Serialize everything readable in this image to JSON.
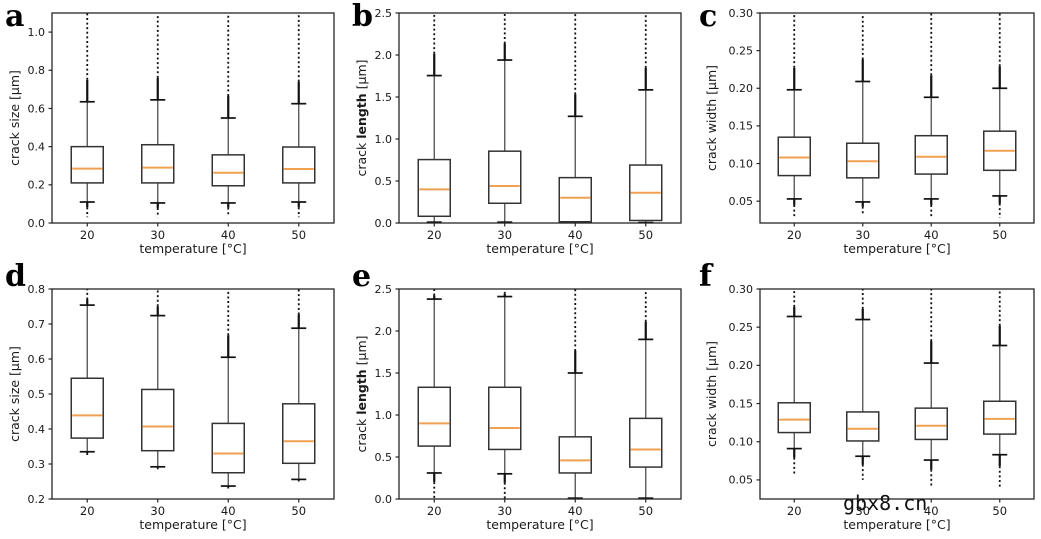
{
  "watermark": {
    "text": "gbx8.cn"
  },
  "colors": {
    "median": "#f0a050",
    "box_edge": "#333333",
    "whisker": "#4f4f4f",
    "cap": "#111111",
    "flier": "#111111",
    "spine": "#262626",
    "text": "#1a1a1a"
  },
  "chart_data": [
    {
      "panel": "a",
      "type": "box",
      "xlabel": "temperature [°C]",
      "ylabel": "crack size [μm]",
      "ylabel_segments": [
        {
          "text": "crack size [μm]",
          "bold": false
        }
      ],
      "categories": [
        "20",
        "30",
        "40",
        "50"
      ],
      "ylim": [
        0.0,
        1.1
      ],
      "yticks": [
        0.0,
        0.2,
        0.4,
        0.6,
        0.8,
        1.0
      ],
      "ytick_labels": [
        "0.0",
        "0.2",
        "0.4",
        "0.6",
        "0.8",
        "1.0"
      ],
      "boxes": [
        {
          "category": "20",
          "whislo": 0.11,
          "q1": 0.21,
          "med": 0.285,
          "q3": 0.4,
          "whishi": 0.635,
          "flier_low_to": 0.03,
          "flier_high_to": 1.1
        },
        {
          "category": "30",
          "whislo": 0.105,
          "q1": 0.21,
          "med": 0.29,
          "q3": 0.41,
          "whishi": 0.645,
          "flier_low_to": 0.03,
          "flier_high_to": 1.1
        },
        {
          "category": "40",
          "whislo": 0.105,
          "q1": 0.195,
          "med": 0.263,
          "q3": 0.357,
          "whishi": 0.55,
          "flier_low_to": 0.035,
          "flier_high_to": 1.1
        },
        {
          "category": "50",
          "whislo": 0.11,
          "q1": 0.21,
          "med": 0.283,
          "q3": 0.398,
          "whishi": 0.625,
          "flier_low_to": 0.03,
          "flier_high_to": 1.1
        }
      ]
    },
    {
      "panel": "b",
      "type": "box",
      "xlabel": "temperature [°C]",
      "ylabel": "crack length [μm]",
      "ylabel_segments": [
        {
          "text": "crack ",
          "bold": false
        },
        {
          "text": "length",
          "bold": true
        },
        {
          "text": " [μm]",
          "bold": false
        }
      ],
      "categories": [
        "20",
        "30",
        "40",
        "50"
      ],
      "ylim": [
        0.0,
        2.5
      ],
      "yticks": [
        0.0,
        0.5,
        1.0,
        1.5,
        2.0,
        2.5
      ],
      "ytick_labels": [
        "0.0",
        "0.5",
        "1.0",
        "1.5",
        "2.0",
        "2.5"
      ],
      "boxes": [
        {
          "category": "20",
          "whislo": 0.01,
          "q1": 0.08,
          "med": 0.4,
          "q3": 0.755,
          "whishi": 1.755,
          "flier_low_to": null,
          "flier_high_to": 2.5
        },
        {
          "category": "30",
          "whislo": 0.01,
          "q1": 0.235,
          "med": 0.44,
          "q3": 0.855,
          "whishi": 1.94,
          "flier_low_to": null,
          "flier_high_to": 2.5
        },
        {
          "category": "40",
          "whislo": 0.005,
          "q1": 0.015,
          "med": 0.3,
          "q3": 0.54,
          "whishi": 1.27,
          "flier_low_to": null,
          "flier_high_to": 2.5
        },
        {
          "category": "50",
          "whislo": 0.005,
          "q1": 0.03,
          "med": 0.36,
          "q3": 0.69,
          "whishi": 1.585,
          "flier_low_to": null,
          "flier_high_to": 2.5
        }
      ]
    },
    {
      "panel": "c",
      "type": "box",
      "xlabel": "temperature [°C]",
      "ylabel": "crack width [μm]",
      "ylabel_segments": [
        {
          "text": "crack width [μm]",
          "bold": false
        }
      ],
      "categories": [
        "20",
        "30",
        "40",
        "50"
      ],
      "ylim": [
        0.021,
        0.3
      ],
      "yticks": [
        0.05,
        0.1,
        0.15,
        0.2,
        0.25,
        0.3
      ],
      "ytick_labels": [
        "0.05",
        "0.10",
        "0.15",
        "0.20",
        "0.25",
        "0.30"
      ],
      "boxes": [
        {
          "category": "20",
          "whislo": 0.053,
          "q1": 0.084,
          "med": 0.108,
          "q3": 0.135,
          "whishi": 0.198,
          "flier_low_to": 0.03,
          "flier_high_to": 0.3
        },
        {
          "category": "30",
          "whislo": 0.049,
          "q1": 0.081,
          "med": 0.103,
          "q3": 0.127,
          "whishi": 0.209,
          "flier_low_to": 0.031,
          "flier_high_to": 0.3
        },
        {
          "category": "40",
          "whislo": 0.053,
          "q1": 0.086,
          "med": 0.109,
          "q3": 0.137,
          "whishi": 0.188,
          "flier_low_to": 0.03,
          "flier_high_to": 0.3
        },
        {
          "category": "50",
          "whislo": 0.057,
          "q1": 0.091,
          "med": 0.117,
          "q3": 0.143,
          "whishi": 0.2,
          "flier_low_to": 0.028,
          "flier_high_to": 0.3
        }
      ]
    },
    {
      "panel": "d",
      "type": "box",
      "xlabel": "temperature [°C]",
      "ylabel": "crack size [μm]",
      "ylabel_segments": [
        {
          "text": "crack size [μm]",
          "bold": false
        }
      ],
      "categories": [
        "20",
        "30",
        "40",
        "50"
      ],
      "ylim": [
        0.2,
        0.8
      ],
      "yticks": [
        0.2,
        0.3,
        0.4,
        0.5,
        0.6,
        0.7,
        0.8
      ],
      "ytick_labels": [
        "0.2",
        "0.3",
        "0.4",
        "0.5",
        "0.6",
        "0.7",
        "0.8"
      ],
      "boxes": [
        {
          "category": "20",
          "whislo": 0.335,
          "q1": 0.374,
          "med": 0.439,
          "q3": 0.545,
          "whishi": 0.754,
          "flier_low_to": 0.325,
          "flier_high_to": 0.8
        },
        {
          "category": "30",
          "whislo": 0.292,
          "q1": 0.338,
          "med": 0.407,
          "q3": 0.513,
          "whishi": 0.724,
          "flier_low_to": 0.285,
          "flier_high_to": 0.8
        },
        {
          "category": "40",
          "whislo": 0.237,
          "q1": 0.275,
          "med": 0.33,
          "q3": 0.416,
          "whishi": 0.605,
          "flier_low_to": 0.23,
          "flier_high_to": 0.8
        },
        {
          "category": "50",
          "whislo": 0.256,
          "q1": 0.302,
          "med": 0.365,
          "q3": 0.472,
          "whishi": 0.688,
          "flier_low_to": 0.25,
          "flier_high_to": 0.8
        }
      ]
    },
    {
      "panel": "e",
      "type": "box",
      "xlabel": "temperature [°C]",
      "ylabel": "crack length [μm]",
      "ylabel_segments": [
        {
          "text": "crack ",
          "bold": false
        },
        {
          "text": "length",
          "bold": true
        },
        {
          "text": " [μm]",
          "bold": false
        }
      ],
      "categories": [
        "20",
        "30",
        "40",
        "50"
      ],
      "ylim": [
        0.0,
        2.5
      ],
      "yticks": [
        0.0,
        0.5,
        1.0,
        1.5,
        2.0,
        2.5
      ],
      "ytick_labels": [
        "0.0",
        "0.5",
        "1.0",
        "1.5",
        "2.0",
        "2.5"
      ],
      "boxes": [
        {
          "category": "20",
          "whislo": 0.31,
          "q1": 0.63,
          "med": 0.9,
          "q3": 1.33,
          "whishi": 2.38,
          "flier_low_to": 0.0,
          "flier_high_to": 2.5
        },
        {
          "category": "30",
          "whislo": 0.3,
          "q1": 0.59,
          "med": 0.845,
          "q3": 1.33,
          "whishi": 2.41,
          "flier_low_to": 0.0,
          "flier_high_to": 2.5
        },
        {
          "category": "40",
          "whislo": 0.01,
          "q1": 0.31,
          "med": 0.46,
          "q3": 0.74,
          "whishi": 1.5,
          "flier_low_to": 0.0,
          "flier_high_to": 2.5
        },
        {
          "category": "50",
          "whislo": 0.01,
          "q1": 0.38,
          "med": 0.59,
          "q3": 0.96,
          "whishi": 1.9,
          "flier_low_to": 0.0,
          "flier_high_to": 2.5
        }
      ]
    },
    {
      "panel": "f",
      "type": "box",
      "xlabel": "temperature [°C]",
      "ylabel": "crack width [μm]",
      "ylabel_segments": [
        {
          "text": "crack width [μm]",
          "bold": false
        }
      ],
      "categories": [
        "20",
        "30",
        "40",
        "50"
      ],
      "ylim": [
        0.025,
        0.3
      ],
      "yticks": [
        0.05,
        0.1,
        0.15,
        0.2,
        0.25,
        0.3
      ],
      "ytick_labels": [
        "0.05",
        "0.10",
        "0.15",
        "0.20",
        "0.25",
        "0.30"
      ],
      "boxes": [
        {
          "category": "20",
          "whislo": 0.091,
          "q1": 0.112,
          "med": 0.129,
          "q3": 0.151,
          "whishi": 0.264,
          "flier_low_to": 0.057,
          "flier_high_to": 0.3
        },
        {
          "category": "30",
          "whislo": 0.081,
          "q1": 0.101,
          "med": 0.117,
          "q3": 0.139,
          "whishi": 0.26,
          "flier_low_to": 0.05,
          "flier_high_to": 0.3
        },
        {
          "category": "40",
          "whislo": 0.076,
          "q1": 0.103,
          "med": 0.121,
          "q3": 0.144,
          "whishi": 0.203,
          "flier_low_to": 0.04,
          "flier_high_to": 0.3
        },
        {
          "category": "50",
          "whislo": 0.083,
          "q1": 0.11,
          "med": 0.13,
          "q3": 0.153,
          "whishi": 0.226,
          "flier_low_to": 0.04,
          "flier_high_to": 0.3
        }
      ]
    }
  ]
}
